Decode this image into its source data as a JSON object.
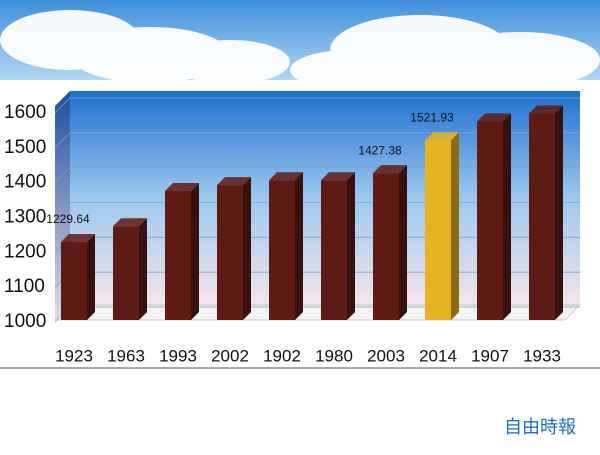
{
  "chart_data": {
    "type": "bar3d",
    "categories": [
      "1923",
      "1963",
      "1993",
      "2002",
      "1902",
      "1980",
      "2003",
      "2014",
      "1907",
      "1933"
    ],
    "values": [
      1229.64,
      1275,
      1376,
      1393,
      1407,
      1407,
      1427.38,
      1521.93,
      1576,
      1599
    ],
    "value_labels": [
      "1229.64",
      null,
      null,
      null,
      null,
      null,
      "1427.38",
      "1521.93",
      null,
      null
    ],
    "colors": [
      "#5e1b14",
      "#5e1b14",
      "#5e1b14",
      "#5e1b14",
      "#5e1b14",
      "#5e1b14",
      "#5e1b14",
      "#e6b422",
      "#5e1b14",
      "#5e1b14"
    ],
    "ylim": [
      1000,
      1600
    ],
    "yticks": [
      1000,
      1100,
      1200,
      1300,
      1400,
      1500,
      1600
    ],
    "grid": true,
    "watermark": "自由時報"
  }
}
